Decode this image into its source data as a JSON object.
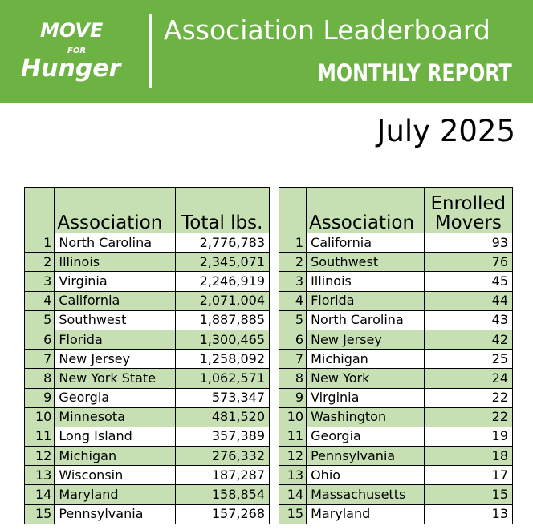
{
  "logo": {
    "line1": "MOVE",
    "line2": "FOR",
    "line3": "Hunger"
  },
  "header": {
    "title": "Association Leaderboard",
    "subtitle": "MONTHLY REPORT"
  },
  "date": "July 2025",
  "tables": [
    {
      "columns": [
        "",
        "Association",
        "Total lbs."
      ],
      "rows": [
        [
          "1",
          "North Carolina",
          "2,776,783"
        ],
        [
          "2",
          "Illinois",
          "2,345,071"
        ],
        [
          "3",
          "Virginia",
          "2,246,919"
        ],
        [
          "4",
          "California",
          "2,071,004"
        ],
        [
          "5",
          "Southwest",
          "1,887,885"
        ],
        [
          "6",
          "Florida",
          "1,300,465"
        ],
        [
          "7",
          "New Jersey",
          "1,258,092"
        ],
        [
          "8",
          "New York State",
          "1,062,571"
        ],
        [
          "9",
          "Georgia",
          "573,347"
        ],
        [
          "10",
          "Minnesota",
          "481,520"
        ],
        [
          "11",
          "Long Island",
          "357,389"
        ],
        [
          "12",
          "Michigan",
          "276,332"
        ],
        [
          "13",
          "Wisconsin",
          "187,287"
        ],
        [
          "14",
          "Maryland",
          "158,854"
        ],
        [
          "15",
          "Pennsylvania",
          "157,268"
        ]
      ]
    },
    {
      "columns": [
        "",
        "Association",
        "Enrolled Movers"
      ],
      "rows": [
        [
          "1",
          "California",
          "93"
        ],
        [
          "2",
          "Southwest",
          "76"
        ],
        [
          "3",
          "Illinois",
          "45"
        ],
        [
          "4",
          "Florida",
          "44"
        ],
        [
          "5",
          "North Carolina",
          "43"
        ],
        [
          "6",
          "New Jersey",
          "42"
        ],
        [
          "7",
          "Michigan",
          "25"
        ],
        [
          "8",
          "New York",
          "24"
        ],
        [
          "9",
          "Virginia",
          "22"
        ],
        [
          "10",
          "Washington",
          "22"
        ],
        [
          "11",
          "Georgia",
          "19"
        ],
        [
          "12",
          "Pennsylvania",
          "18"
        ],
        [
          "13",
          "Ohio",
          "17"
        ],
        [
          "14",
          "Massachusetts",
          "15"
        ],
        [
          "15",
          "Maryland",
          "13"
        ]
      ]
    }
  ]
}
